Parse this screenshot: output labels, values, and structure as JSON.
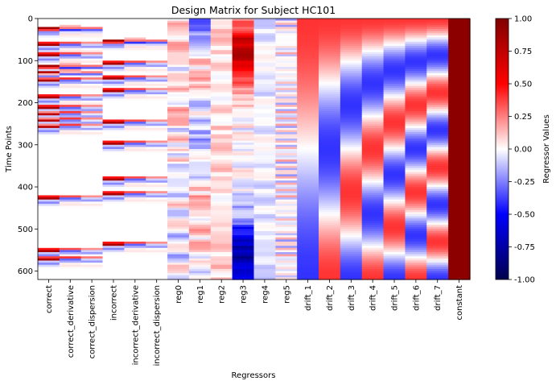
{
  "chart_data": {
    "type": "heatmap",
    "title": "Design Matrix for Subject HC101",
    "xlabel": "Regressors",
    "ylabel": "Time Points",
    "ylim": [
      0,
      620
    ],
    "y_ticks": [
      0,
      100,
      200,
      300,
      400,
      500,
      600
    ],
    "y_inverted": true,
    "regressors": [
      "correct",
      "correct_derivative",
      "correct_dispersion",
      "incorrect",
      "incorrect_derivative",
      "incorrect_dispersion",
      "reg0",
      "reg1",
      "reg2",
      "reg3",
      "reg4",
      "reg5",
      "drift_1",
      "drift_2",
      "drift_3",
      "drift_4",
      "drift_5",
      "drift_6",
      "drift_7",
      "constant"
    ],
    "colorbar": {
      "label": "Regressor Values",
      "range": [
        -1.0,
        1.0
      ],
      "ticks": [
        "-1.00",
        "-0.75",
        "-0.50",
        "-0.25",
        "0.00",
        "0.25",
        "0.50",
        "0.75",
        "1.00"
      ],
      "colormap": "seismic"
    },
    "correct_onsets": [
      18,
      55,
      80,
      108,
      122,
      140,
      180,
      205,
      220,
      235,
      250,
      420,
      545,
      565
    ],
    "incorrect_onsets": [
      48,
      100,
      135,
      165,
      240,
      290,
      375,
      410,
      530
    ],
    "constant_value": 0.95
  }
}
